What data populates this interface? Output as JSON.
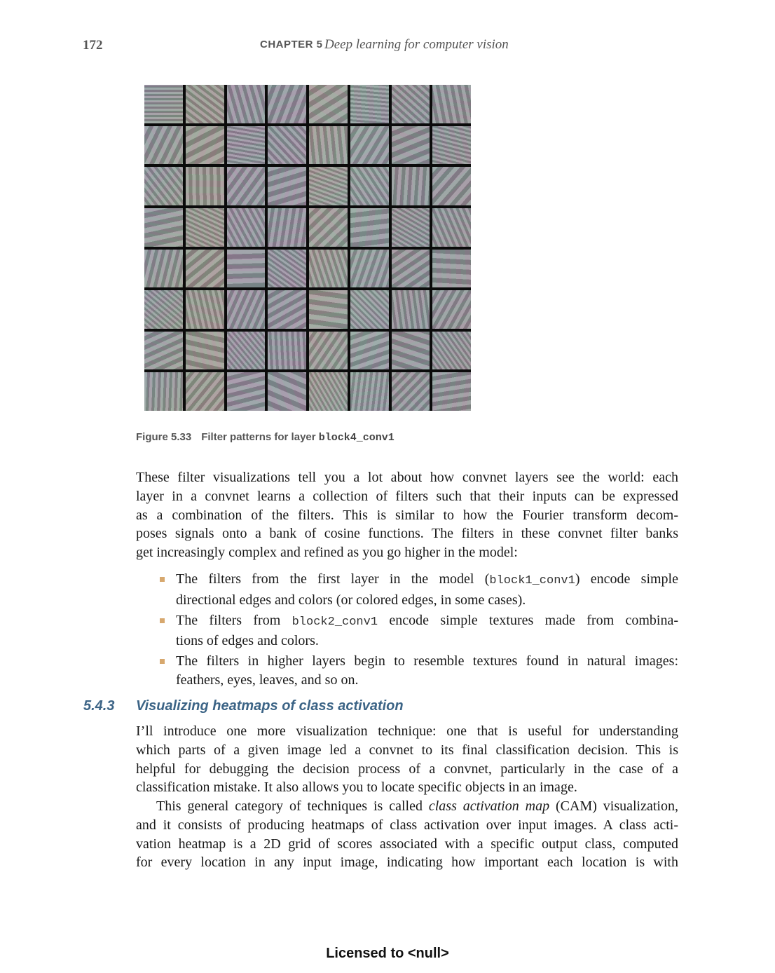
{
  "header": {
    "page_number": "172",
    "chapter_label": "CHAPTER 5",
    "chapter_title": "Deep learning for computer vision"
  },
  "figure": {
    "label": "Figure 5.33",
    "caption_text": "Filter patterns for layer",
    "caption_code": "block4_conv1"
  },
  "paragraph1_lines": [
    "These filter visualizations tell you a lot about how convnet layers see the world: each",
    "layer in a convnet learns a collection of filters such that their inputs can be expressed",
    "as a combination of the filters. This is similar to how the Fourier transform decom-",
    "poses signals onto a bank of cosine functions. The filters in these convnet filter banks",
    "get increasingly complex and refined as you go higher in the model:"
  ],
  "bullets": {
    "b1_line1_pre": "The filters from the first layer in the model (",
    "b1_code": "block1_conv1",
    "b1_line1_post": ") encode simple",
    "b1_line2": "directional edges and colors (or colored edges, in some cases).",
    "b2_line1_pre": "The filters from ",
    "b2_code": "block2_conv1",
    "b2_line1_post": " encode simple textures made from combina-",
    "b2_line2": "tions of edges and colors.",
    "b3_line1": "The filters in higher layers begin to resemble textures found in natural images:",
    "b3_line2": "feathers, eyes, leaves, and so on."
  },
  "section": {
    "number": "5.4.3",
    "title": "Visualizing heatmaps of class activation"
  },
  "paragraph2_lines": [
    "I’ll introduce one more visualization technique: one that is useful for understanding",
    "which parts of a given image led a convnet to its final classification decision. This is",
    "helpful for debugging the decision process of a convnet, particularly in the case of a",
    "classification mistake. It also allows you to locate specific objects in an image."
  ],
  "paragraph3": {
    "l1_pre": "This general category of techniques is called ",
    "l1_em": "class activation map",
    "l1_post": " (CAM) visualization,",
    "l2": "and it consists of producing heatmaps of class activation over input images. A class acti-",
    "l3": "vation heatmap is a 2D grid of scores associated with a specific output class, computed",
    "l4": "for every location in any input image, indicating how important each location is with"
  },
  "footer": "Licensed to   <null>",
  "colors": {
    "section_heading": "#3c6486",
    "bullet": "#d7a86e",
    "header_gray": "#555555"
  }
}
